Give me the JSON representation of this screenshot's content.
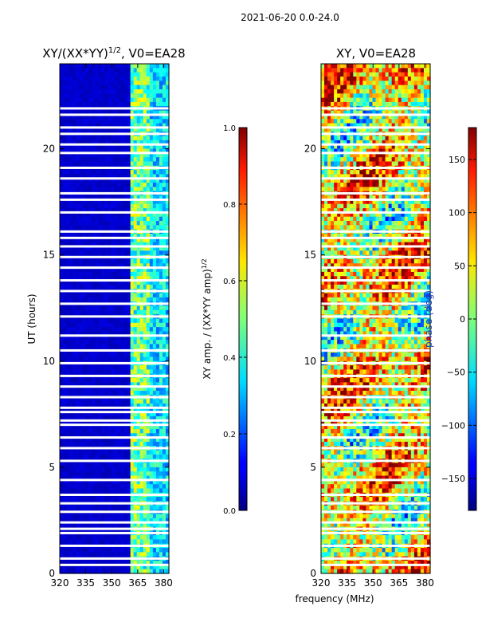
{
  "suptitle": "2021-06-20 0.0-24.0",
  "colors": {
    "background": "#ffffff",
    "axes": "#000000",
    "gap": "#ffffff"
  },
  "chart_data": [
    {
      "type": "heatmap",
      "title": "XY/(XX*YY)^1/2, V0=EA28",
      "title_main": "XY/(XX*YY)",
      "title_sup": "1/2",
      "title_tail": ", V0=EA28",
      "xlabel": "",
      "ylabel": "UT (hours)",
      "xlim": [
        320,
        383
      ],
      "ylim": [
        0,
        24
      ],
      "xticks": [
        320,
        335,
        350,
        365,
        380
      ],
      "yticks": [
        0,
        5,
        10,
        15,
        20
      ],
      "colormap": "jet",
      "colorbar": {
        "label": "XY amp. / (XX*YY amp)^1/2",
        "label_main": "XY amp. / (XX*YY amp)",
        "label_sup": "1/2",
        "range": [
          0.0,
          1.0
        ],
        "ticks": [
          0.0,
          0.2,
          0.4,
          0.6,
          0.8,
          1.0
        ],
        "tick_labels": [
          "0.0",
          "0.2",
          "0.4",
          "0.6",
          "0.8",
          "1.0"
        ]
      },
      "description": "Low values (~0.05) below 360 MHz; elevated values 0.3-0.7 in the 360-380 MHz band with the strongest around 365-372 MHz"
    },
    {
      "type": "heatmap",
      "title": "XY, V0=EA28",
      "xlabel": "frequency (MHz)",
      "ylabel": "",
      "xlim": [
        320,
        383
      ],
      "ylim": [
        0,
        24
      ],
      "xticks": [
        320,
        335,
        350,
        365,
        380
      ],
      "yticks": [
        0,
        5,
        10,
        15,
        20
      ],
      "colormap": "jet",
      "colorbar": {
        "label": "phase (deg)",
        "range": [
          -180,
          180
        ],
        "ticks": [
          -150,
          -100,
          -50,
          0,
          50,
          100,
          150
        ],
        "tick_labels": [
          "−150",
          "−100",
          "−50",
          "0",
          "50",
          "100",
          "150"
        ]
      },
      "description": "Phase varies broadly across -180 to 180 deg, mostly 50-150 deg (yellow/red) with blue/cyan bands"
    }
  ],
  "flag_gaps_ut_hours": [
    0.4,
    0.7,
    1.3,
    1.9,
    2.1,
    2.4,
    2.9,
    3.3,
    3.7,
    4.4,
    5.3,
    5.9,
    6.4,
    7.0,
    7.2,
    7.6,
    7.8,
    8.3,
    8.8,
    9.3,
    9.9,
    10.5,
    11.2,
    12.1,
    12.7,
    13.3,
    13.8,
    14.4,
    14.9,
    15.4,
    15.8,
    16.1,
    17.0,
    17.6,
    17.9,
    18.6,
    19.1,
    19.8,
    20.2,
    20.7,
    21.0,
    21.6,
    21.9
  ]
}
